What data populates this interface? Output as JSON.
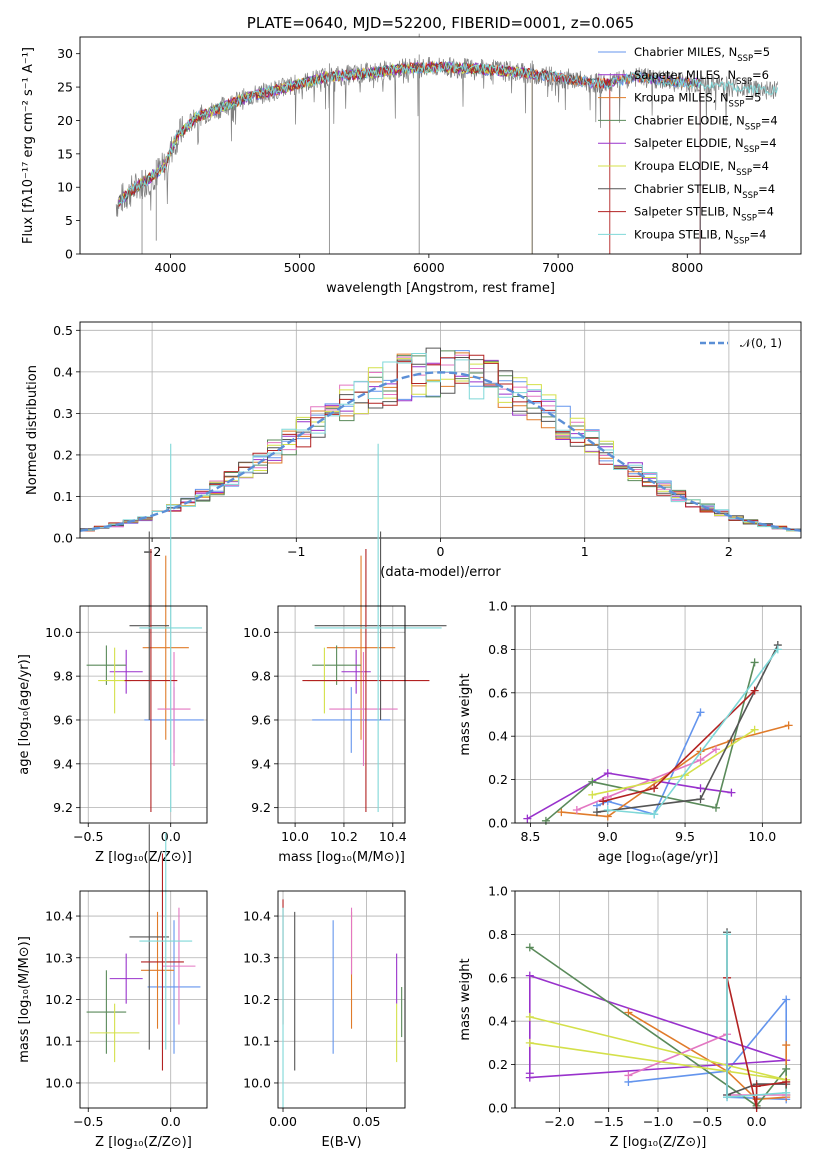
{
  "chart_data": [
    {
      "id": "spectrum",
      "type": "line",
      "title": "PLATE=0640, MJD=52200, FIBERID=0001, z=0.065",
      "xlabel": "wavelength [Angstrom, rest frame]",
      "ylabel": "Flux [fλ10⁻¹⁷ erg cm⁻² s⁻¹ A⁻¹]",
      "xlim": [
        3300,
        8880
      ],
      "ylim": [
        0,
        32.5
      ],
      "xticks": [
        4000,
        5000,
        6000,
        7000,
        8000
      ],
      "yticks": [
        0,
        5,
        10,
        15,
        20,
        25,
        30
      ],
      "grid": false,
      "legend_position": "upper right",
      "continuum": [
        [
          3580,
          7.5
        ],
        [
          3700,
          9.5
        ],
        [
          3850,
          11.5
        ],
        [
          3950,
          13
        ],
        [
          4050,
          17.5
        ],
        [
          4200,
          20.5
        ],
        [
          4400,
          22
        ],
        [
          4600,
          23.5
        ],
        [
          4800,
          24.5
        ],
        [
          5000,
          25.5
        ],
        [
          5200,
          26.5
        ],
        [
          5500,
          27
        ],
        [
          5800,
          27.8
        ],
        [
          6100,
          28
        ],
        [
          6400,
          27.7
        ],
        [
          6700,
          27.2
        ],
        [
          7000,
          26.5
        ],
        [
          7200,
          25.8
        ],
        [
          7400,
          25.5
        ],
        [
          7600,
          26.5
        ],
        [
          7800,
          26
        ],
        [
          8100,
          25.5
        ],
        [
          8400,
          25
        ],
        [
          8700,
          24.5
        ]
      ],
      "series": [
        {
          "name": "Chabrier MILES, N",
          "sub": "SSP",
          "suffix": "=5",
          "color": "#6495ed",
          "model_end": 8100
        },
        {
          "name": "Salpeter MILES, N",
          "sub": "SSP",
          "suffix": "=6",
          "color": "#9932cc",
          "model_end": 8100
        },
        {
          "name": "Kroupa MILES, N",
          "sub": "SSP",
          "suffix": "=5",
          "color": "#e07b2a",
          "model_end": 8100
        },
        {
          "name": "Chabrier ELODIE, N",
          "sub": "SSP",
          "suffix": "=4",
          "color": "#5a8a5a",
          "model_end": 6800
        },
        {
          "name": "Salpeter ELODIE, N",
          "sub": "SSP",
          "suffix": "=4",
          "color": "#9932cc",
          "model_end": 6800
        },
        {
          "name": "Kroupa ELODIE, N",
          "sub": "SSP",
          "suffix": "=4",
          "color": "#d4e04a",
          "model_end": 6800
        },
        {
          "name": "Chabrier STELIB, N",
          "sub": "SSP",
          "suffix": "=4",
          "color": "#555555",
          "model_end": 8100
        },
        {
          "name": "Salpeter STELIB, N",
          "sub": "SSP",
          "suffix": "=4",
          "color": "#b22222",
          "model_end": 7400
        },
        {
          "name": "Kroupa STELIB, N",
          "sub": "SSP",
          "suffix": "=4",
          "color": "#7fd8d8",
          "model_end": 8800
        }
      ]
    },
    {
      "id": "residuals",
      "type": "histogram",
      "xlabel": "(data-model)/error",
      "ylabel": "Normed distribution",
      "xlim": [
        -2.5,
        2.5
      ],
      "ylim": [
        0,
        0.52
      ],
      "xticks": [
        -2,
        -1,
        0,
        1,
        2
      ],
      "yticks": [
        0.0,
        0.1,
        0.2,
        0.3,
        0.4,
        0.5
      ],
      "grid": true,
      "legend_position": "upper right",
      "legend_label": "𝒩(0, 1)",
      "reference_curve": {
        "mean": 0,
        "sigma": 1,
        "color": "#5b8fd6"
      },
      "bin_width": 0.1,
      "series_colors": [
        "#6495ed",
        "#9932cc",
        "#e07b2a",
        "#5a8a5a",
        "#e377c2",
        "#d4e04a",
        "#555555",
        "#b22222",
        "#7fd8d8"
      ]
    },
    {
      "id": "age-vs-z",
      "type": "errorbar",
      "xlabel": "Z [log₁₀(Z/Z⊙)]",
      "ylabel": "age  [log₁₀(age/yr)]",
      "xlim": [
        -0.55,
        0.22
      ],
      "ylim": [
        9.13,
        10.12
      ],
      "xticks": [
        -0.5,
        0.0
      ],
      "yticks": [
        9.2,
        9.4,
        9.6,
        9.8,
        10.0
      ],
      "grid": true,
      "points": [
        {
          "x": 0.02,
          "y": 9.6,
          "xerr": 0.18,
          "yerr": 0.15,
          "color": "#6495ed"
        },
        {
          "x": -0.27,
          "y": 9.82,
          "xerr": 0.1,
          "yerr": 0.1,
          "color": "#9932cc"
        },
        {
          "x": -0.03,
          "y": 9.93,
          "xerr": 0.14,
          "yerr": 0.42,
          "color": "#e07b2a"
        },
        {
          "x": -0.39,
          "y": 9.85,
          "xerr": 0.12,
          "yerr": 0.09,
          "color": "#5a8a5a"
        },
        {
          "x": 0.02,
          "y": 9.65,
          "xerr": 0.1,
          "yerr": 0.26,
          "color": "#e377c2"
        },
        {
          "x": -0.34,
          "y": 9.78,
          "xerr": 0.1,
          "yerr": 0.15,
          "color": "#d4e04a"
        },
        {
          "x": -0.13,
          "y": 10.03,
          "xerr": 0.12,
          "yerr": 0.43,
          "color": "#555555"
        },
        {
          "x": -0.12,
          "y": 9.78,
          "xerr": 0.16,
          "yerr": 0.6,
          "color": "#b22222"
        },
        {
          "x": 0.0,
          "y": 10.02,
          "xerr": 0.19,
          "yerr": 0.84,
          "color": "#7fd8d8"
        }
      ]
    },
    {
      "id": "age-vs-mass",
      "type": "errorbar",
      "xlabel": "mass [log₁₀(M/M⊙)]",
      "ylabel": "",
      "xlim": [
        9.93,
        10.45
      ],
      "ylim": [
        9.13,
        10.12
      ],
      "xticks": [
        10.0,
        10.2,
        10.4
      ],
      "yticks": [
        9.2,
        9.4,
        9.6,
        9.8,
        10.0
      ],
      "grid": true,
      "points": [
        {
          "x": 10.23,
          "y": 9.6,
          "xerr": 0.16,
          "yerr": 0.15,
          "color": "#6495ed"
        },
        {
          "x": 10.25,
          "y": 9.82,
          "xerr": 0.06,
          "yerr": 0.1,
          "color": "#9932cc"
        },
        {
          "x": 10.27,
          "y": 9.93,
          "xerr": 0.14,
          "yerr": 0.42,
          "color": "#e07b2a"
        },
        {
          "x": 10.17,
          "y": 9.85,
          "xerr": 0.1,
          "yerr": 0.09,
          "color": "#5a8a5a"
        },
        {
          "x": 10.28,
          "y": 9.65,
          "xerr": 0.14,
          "yerr": 0.26,
          "color": "#e377c2"
        },
        {
          "x": 10.12,
          "y": 9.78,
          "xerr": 0.07,
          "yerr": 0.15,
          "color": "#d4e04a"
        },
        {
          "x": 10.35,
          "y": 10.03,
          "xerr": 0.27,
          "yerr": 0.43,
          "color": "#555555"
        },
        {
          "x": 10.29,
          "y": 9.78,
          "xerr": 0.26,
          "yerr": 0.6,
          "color": "#b22222"
        },
        {
          "x": 10.34,
          "y": 10.02,
          "xerr": 0.26,
          "yerr": 0.84,
          "color": "#7fd8d8"
        }
      ]
    },
    {
      "id": "weight-vs-age",
      "type": "line",
      "xlabel": "age  [log₁₀(age/yr)]",
      "ylabel": "mass weight",
      "xlim": [
        8.4,
        10.25
      ],
      "ylim": [
        0,
        1.0
      ],
      "xticks": [
        8.5,
        9.0,
        9.5,
        10.0
      ],
      "yticks": [
        0.0,
        0.2,
        0.4,
        0.6,
        0.8,
        1.0
      ],
      "grid": true,
      "series": [
        {
          "color": "#6495ed",
          "points": [
            [
              8.93,
              0.08
            ],
            [
              9.0,
              0.1
            ],
            [
              9.3,
              0.04
            ],
            [
              9.6,
              0.51
            ]
          ]
        },
        {
          "color": "#9932cc",
          "points": [
            [
              8.48,
              0.02
            ],
            [
              9.0,
              0.23
            ],
            [
              9.6,
              0.16
            ],
            [
              9.8,
              0.14
            ]
          ]
        },
        {
          "color": "#e07b2a",
          "points": [
            [
              8.7,
              0.05
            ],
            [
              9.0,
              0.03
            ],
            [
              9.6,
              0.33
            ],
            [
              9.8,
              0.38
            ],
            [
              10.17,
              0.45
            ]
          ]
        },
        {
          "color": "#5a8a5a",
          "points": [
            [
              8.6,
              0.01
            ],
            [
              8.9,
              0.19
            ],
            [
              9.7,
              0.07
            ],
            [
              9.95,
              0.74
            ]
          ]
        },
        {
          "color": "#e377c2",
          "points": [
            [
              8.8,
              0.06
            ],
            [
              9.0,
              0.12
            ],
            [
              9.6,
              0.29
            ],
            [
              9.7,
              0.34
            ]
          ]
        },
        {
          "color": "#d4e04a",
          "points": [
            [
              8.9,
              0.13
            ],
            [
              9.5,
              0.22
            ],
            [
              9.95,
              0.43
            ]
          ]
        },
        {
          "color": "#555555",
          "points": [
            [
              8.93,
              0.05
            ],
            [
              9.6,
              0.11
            ],
            [
              10.1,
              0.82
            ]
          ]
        },
        {
          "color": "#b22222",
          "points": [
            [
              8.97,
              0.1
            ],
            [
              9.3,
              0.16
            ],
            [
              9.95,
              0.61
            ]
          ]
        },
        {
          "color": "#7fd8d8",
          "points": [
            [
              9.0,
              0.06
            ],
            [
              9.3,
              0.04
            ],
            [
              10.1,
              0.8
            ]
          ]
        }
      ]
    },
    {
      "id": "mass-vs-z",
      "type": "errorbar",
      "xlabel": "Z [log₁₀(Z/Z⊙)]",
      "ylabel": "mass [log₁₀(M/M⊙)]",
      "xlim": [
        -0.55,
        0.22
      ],
      "ylim": [
        9.94,
        10.46
      ],
      "xticks": [
        -0.5,
        0.0
      ],
      "yticks": [
        10.0,
        10.1,
        10.2,
        10.3,
        10.4
      ],
      "grid": true,
      "points": [
        {
          "x": 0.02,
          "y": 10.23,
          "xerr": 0.16,
          "yerr": 0.16,
          "color": "#6495ed"
        },
        {
          "x": -0.27,
          "y": 10.25,
          "xerr": 0.1,
          "yerr": 0.06,
          "color": "#9932cc"
        },
        {
          "x": -0.08,
          "y": 10.27,
          "xerr": 0.1,
          "yerr": 0.14,
          "color": "#e07b2a"
        },
        {
          "x": -0.39,
          "y": 10.17,
          "xerr": 0.12,
          "yerr": 0.1,
          "color": "#5a8a5a"
        },
        {
          "x": 0.05,
          "y": 10.28,
          "xerr": 0.1,
          "yerr": 0.14,
          "color": "#e377c2"
        },
        {
          "x": -0.34,
          "y": 10.12,
          "xerr": 0.15,
          "yerr": 0.07,
          "color": "#d4e04a"
        },
        {
          "x": -0.13,
          "y": 10.35,
          "xerr": 0.12,
          "yerr": 0.27,
          "color": "#555555"
        },
        {
          "x": -0.05,
          "y": 10.29,
          "xerr": 0.13,
          "yerr": 0.26,
          "color": "#b22222"
        },
        {
          "x": -0.03,
          "y": 10.34,
          "xerr": 0.16,
          "yerr": 0.26,
          "color": "#7fd8d8"
        }
      ]
    },
    {
      "id": "mass-vs-ebv",
      "type": "errorbar",
      "xlabel": "E(B-V)",
      "ylabel": "",
      "xlim": [
        -0.003,
        0.073
      ],
      "ylim": [
        9.94,
        10.46
      ],
      "xticks": [
        0.0,
        0.05
      ],
      "yticks": [
        10.0,
        10.1,
        10.2,
        10.3,
        10.4
      ],
      "grid": true,
      "points": [
        {
          "x": 0.03,
          "y": 10.23,
          "xerr": 0,
          "yerr": 0.16,
          "color": "#6495ed"
        },
        {
          "x": 0.068,
          "y": 10.25,
          "xerr": 0,
          "yerr": 0.06,
          "color": "#9932cc"
        },
        {
          "x": 0.041,
          "y": 10.27,
          "xerr": 0,
          "yerr": 0.14,
          "color": "#e07b2a"
        },
        {
          "x": 0.071,
          "y": 10.17,
          "xerr": 0,
          "yerr": 0.06,
          "color": "#5a8a5a"
        },
        {
          "x": 0.041,
          "y": 10.34,
          "xerr": 0,
          "yerr": 0.08,
          "color": "#e377c2"
        },
        {
          "x": 0.068,
          "y": 10.12,
          "xerr": 0,
          "yerr": 0.07,
          "color": "#d4e04a"
        },
        {
          "x": 0.007,
          "y": 10.22,
          "xerr": 0,
          "yerr": 0.19,
          "color": "#555555"
        },
        {
          "x": 0.0,
          "y": 10.29,
          "xerr": 0,
          "yerr": 0.15,
          "color": "#b22222"
        },
        {
          "x": 0.0,
          "y": 10.18,
          "xerr": 0,
          "yerr": 0.24,
          "color": "#7fd8d8"
        }
      ]
    },
    {
      "id": "weight-vs-z",
      "type": "line",
      "xlabel": "Z [log₁₀(Z/Z⊙)]",
      "ylabel": "mass weight",
      "xlim": [
        -2.45,
        0.45
      ],
      "ylim": [
        0,
        1.0
      ],
      "xticks": [
        -2.0,
        -1.5,
        -1.0,
        -0.5,
        0.0
      ],
      "yticks": [
        0.0,
        0.2,
        0.4,
        0.6,
        0.8,
        1.0
      ],
      "grid": true,
      "series": [
        {
          "color": "#6495ed",
          "points": [
            [
              -1.3,
              0.12
            ],
            [
              -0.3,
              0.17
            ],
            [
              0.3,
              0.5
            ],
            [
              0.3,
              0.04
            ],
            [
              -0.3,
              0.05
            ]
          ]
        },
        {
          "color": "#9932cc",
          "points": [
            [
              -2.3,
              0.14
            ],
            [
              0.3,
              0.22
            ],
            [
              -2.3,
              0.61
            ],
            [
              -2.3,
              0.16
            ]
          ]
        },
        {
          "color": "#e07b2a",
          "points": [
            [
              -1.3,
              0.44
            ],
            [
              -0.3,
              0.17
            ],
            [
              0.0,
              0.04
            ],
            [
              0.3,
              0.05
            ],
            [
              0.3,
              0.29
            ]
          ]
        },
        {
          "color": "#5a8a5a",
          "points": [
            [
              -2.3,
              0.74
            ],
            [
              0.0,
              0.01
            ],
            [
              0.3,
              0.18
            ],
            [
              0.3,
              0.06
            ]
          ]
        },
        {
          "color": "#e377c2",
          "points": [
            [
              -1.3,
              0.15
            ],
            [
              -0.3,
              0.34
            ],
            [
              -0.3,
              0.06
            ],
            [
              0.3,
              0.06
            ]
          ]
        },
        {
          "color": "#d4e04a",
          "points": [
            [
              -2.3,
              0.42
            ],
            [
              0.3,
              0.13
            ],
            [
              -2.3,
              0.3
            ]
          ]
        },
        {
          "color": "#555555",
          "points": [
            [
              -0.3,
              0.81
            ],
            [
              -0.3,
              0.06
            ],
            [
              0.0,
              0.11
            ],
            [
              0.3,
              0.11
            ]
          ]
        },
        {
          "color": "#b22222",
          "points": [
            [
              -0.3,
              0.6
            ],
            [
              0.0,
              0.0
            ],
            [
              0.0,
              0.1
            ],
            [
              0.3,
              0.12
            ]
          ]
        },
        {
          "color": "#7fd8d8",
          "points": [
            [
              -0.3,
              0.8
            ],
            [
              -0.3,
              0.05
            ],
            [
              0.3,
              0.07
            ]
          ]
        }
      ]
    }
  ]
}
